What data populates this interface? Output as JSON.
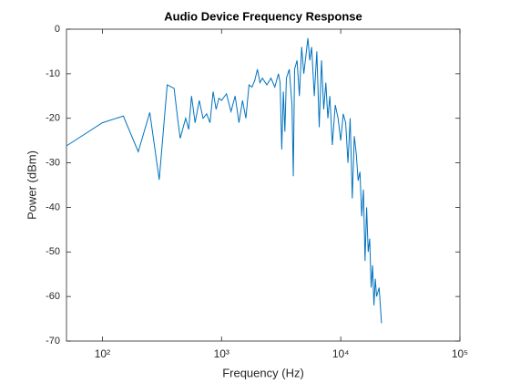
{
  "chart_data": {
    "type": "line",
    "title": "Audio Device Frequency Response",
    "xlabel": "Frequency (Hz)",
    "ylabel": "Power (dBm)",
    "xscale": "log",
    "xlim": [
      50,
      100000
    ],
    "xticks": [
      {
        "value": 100,
        "label": "10²"
      },
      {
        "value": 1000,
        "label": "10³"
      },
      {
        "value": 10000,
        "label": "10⁴"
      },
      {
        "value": 100000,
        "label": "10⁵"
      }
    ],
    "ylim": [
      -70,
      0
    ],
    "yticks": [
      0,
      -10,
      -20,
      -30,
      -40,
      -50,
      -60,
      -70
    ],
    "series": [
      {
        "color": "#0072bd",
        "x": [
          50,
          100,
          150,
          200,
          250,
          300,
          350,
          400,
          430,
          450,
          500,
          530,
          560,
          600,
          650,
          700,
          750,
          800,
          850,
          900,
          950,
          1000,
          1100,
          1200,
          1300,
          1400,
          1500,
          1600,
          1700,
          1800,
          1900,
          2000,
          2100,
          2200,
          2400,
          2600,
          2800,
          3000,
          3100,
          3200,
          3300,
          3400,
          3500,
          3700,
          3900,
          4000,
          4100,
          4300,
          4500,
          4700,
          4900,
          5100,
          5300,
          5500,
          5700,
          6000,
          6300,
          6600,
          6900,
          7200,
          7500,
          7800,
          8100,
          8500,
          9000,
          9500,
          10000,
          10500,
          11000,
          11500,
          12000,
          12500,
          13000,
          13500,
          14000,
          14500,
          15000,
          15500,
          16000,
          16500,
          17000,
          17500,
          18000,
          18500,
          19000,
          19500,
          20000,
          21000,
          22000
        ],
        "values": [
          -26.2,
          -21,
          -19.5,
          -27.5,
          -18.7,
          -33.8,
          -12.5,
          -13.3,
          -20.5,
          -24.5,
          -20,
          -22.5,
          -15,
          -21,
          -16,
          -20,
          -19,
          -21,
          -14,
          -18,
          -15.5,
          -16,
          -14.5,
          -18.5,
          -15,
          -21,
          -16,
          -20,
          -12.5,
          -13,
          -11.5,
          -9,
          -12,
          -11,
          -12.5,
          -11,
          -13,
          -10,
          -12,
          -27,
          -14,
          -23,
          -11,
          -9,
          -17,
          -33,
          -9,
          -7,
          -15,
          -4,
          -10,
          -6,
          -2,
          -7,
          -4,
          -15,
          -5,
          -22,
          -7,
          -18,
          -12,
          -20,
          -15,
          -26,
          -17,
          -20,
          -25,
          -19,
          -21,
          -30,
          -20,
          -38,
          -24,
          -28,
          -34,
          -32,
          -42,
          -36,
          -52,
          -40,
          -50,
          -47,
          -58,
          -53,
          -62,
          -56,
          -60,
          -58,
          -66
        ]
      }
    ]
  }
}
